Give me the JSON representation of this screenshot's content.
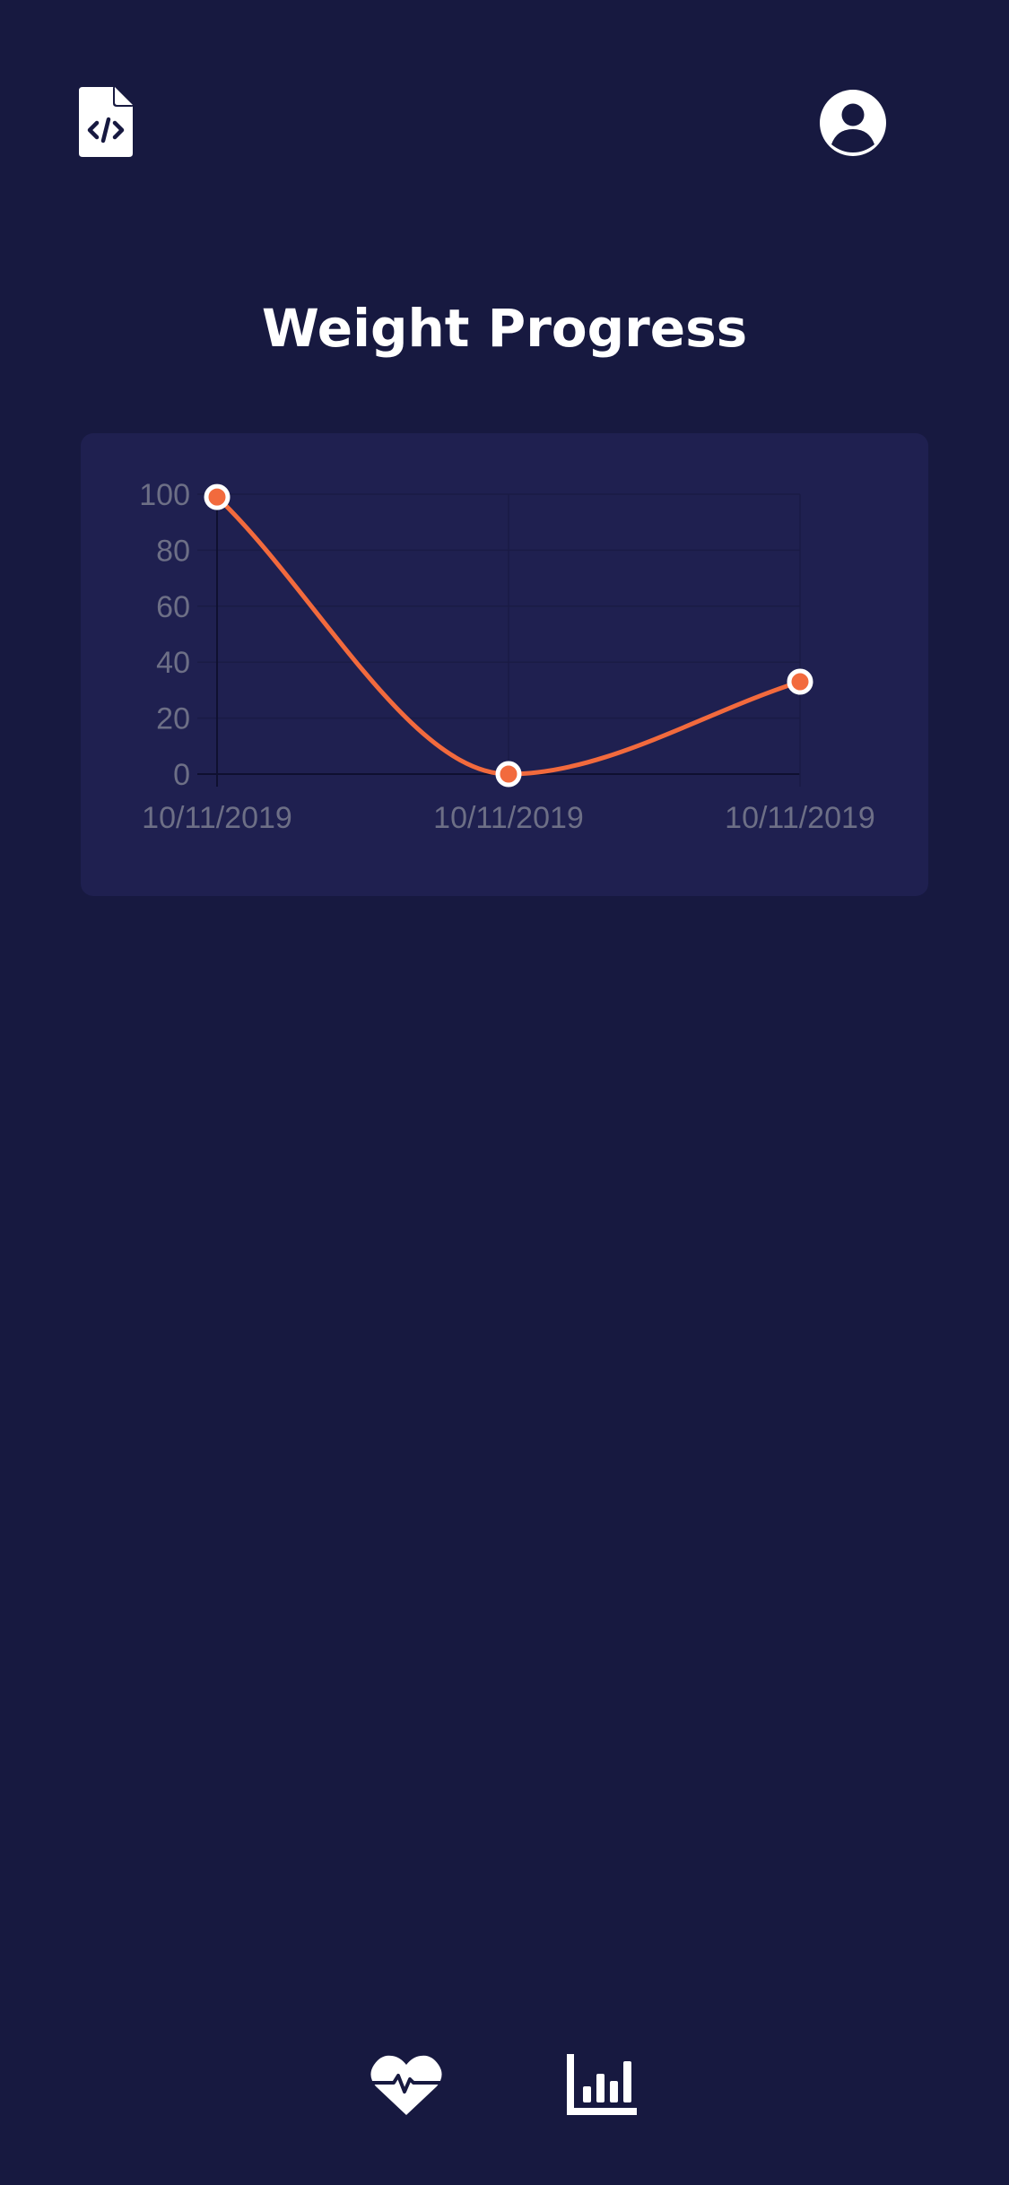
{
  "header": {
    "left_icon": "code-file-icon",
    "right_icon": "profile-icon"
  },
  "page": {
    "title": "Weight Progress"
  },
  "colors": {
    "background": "#171940",
    "card": "#1f2050",
    "line": "#f26a3d",
    "tick_text": "#6d6f86"
  },
  "chart_data": {
    "type": "line",
    "categories": [
      "10/11/2019",
      "10/11/2019",
      "10/11/2019"
    ],
    "series": [
      {
        "values": [
          99,
          0,
          33
        ]
      }
    ],
    "y_ticks": [
      "100",
      "80",
      "60",
      "40",
      "20",
      "0"
    ],
    "ylim": [
      0,
      100
    ],
    "grid": true,
    "smooth": true,
    "legend": "none"
  },
  "bottom_nav": {
    "items": [
      {
        "icon": "heart-pulse-icon"
      },
      {
        "icon": "bar-chart-icon"
      }
    ]
  }
}
